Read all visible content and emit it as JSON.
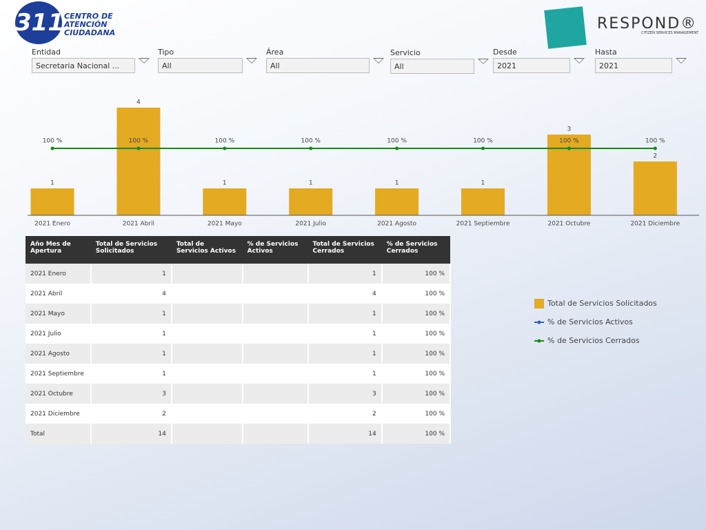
{
  "header": {
    "logo_number": "311",
    "logo_text": [
      "CENTRO DE",
      "ATENCIÓN",
      "CIUDADANA"
    ],
    "brand": "RESPOND®",
    "brand_tagline": "CITIZEN SERVICES MANAGEMENT"
  },
  "filters": [
    {
      "label": "Entidad",
      "value": "Secretaria Nacional ..."
    },
    {
      "label": "Tipo",
      "value": "All"
    },
    {
      "label": "Área",
      "value": "All"
    },
    {
      "label": "Servicio",
      "value": "All"
    },
    {
      "label": "Desde",
      "value": "2021"
    },
    {
      "label": "Hasta",
      "value": "2021"
    }
  ],
  "chart_data": {
    "type": "bar-line",
    "categories": [
      "2021 Enero",
      "2021 Abril",
      "2021 Mayo",
      "2021 Julio",
      "2021 Agosto",
      "2021 Septiembre",
      "2021 Octubre",
      "2021 Diciembre"
    ],
    "ylim": [
      0,
      4
    ],
    "y2lim": [
      0,
      100
    ],
    "legend": "right",
    "series": [
      {
        "name": "Total de Servicios Solicitados",
        "type": "bar",
        "color": "#e3aa22",
        "values": [
          1,
          4,
          1,
          1,
          1,
          1,
          3,
          2
        ]
      },
      {
        "name": "% de Servicios Activos",
        "type": "line",
        "axis": "y2",
        "color": "#2a5fc4",
        "values": [
          null,
          null,
          null,
          null,
          null,
          null,
          null,
          null
        ]
      },
      {
        "name": "% de Servicios Cerrados",
        "type": "line",
        "axis": "y2",
        "color": "#108a10",
        "values": [
          100,
          100,
          100,
          100,
          100,
          100,
          100,
          100
        ],
        "value_labels": [
          "100 %",
          "100 %",
          "100 %",
          "100 %",
          "100 %",
          "100 %",
          "100 %",
          "100 %"
        ]
      }
    ]
  },
  "table": {
    "columns": [
      "Año Mes de Apertura",
      "Total de Servicios Solicitados",
      "Total de Servicios Activos",
      "% de Servicios Activos",
      "Total de Servicios Cerrados",
      "% de Servicios Cerrados"
    ],
    "rows": [
      [
        "2021 Enero",
        1,
        null,
        null,
        1,
        "100 %"
      ],
      [
        "2021 Abril",
        4,
        null,
        null,
        4,
        "100 %"
      ],
      [
        "2021 Mayo",
        1,
        null,
        null,
        1,
        "100 %"
      ],
      [
        "2021 Julio",
        1,
        null,
        null,
        1,
        "100 %"
      ],
      [
        "2021 Agosto",
        1,
        null,
        null,
        1,
        "100 %"
      ],
      [
        "2021 Septiembre",
        1,
        null,
        null,
        1,
        "100 %"
      ],
      [
        "2021 Octubre",
        3,
        null,
        null,
        3,
        "100 %"
      ],
      [
        "2021 Diciembre",
        2,
        null,
        null,
        2,
        "100 %"
      ]
    ],
    "total": [
      "Total",
      14,
      null,
      null,
      14,
      "100 %"
    ]
  }
}
